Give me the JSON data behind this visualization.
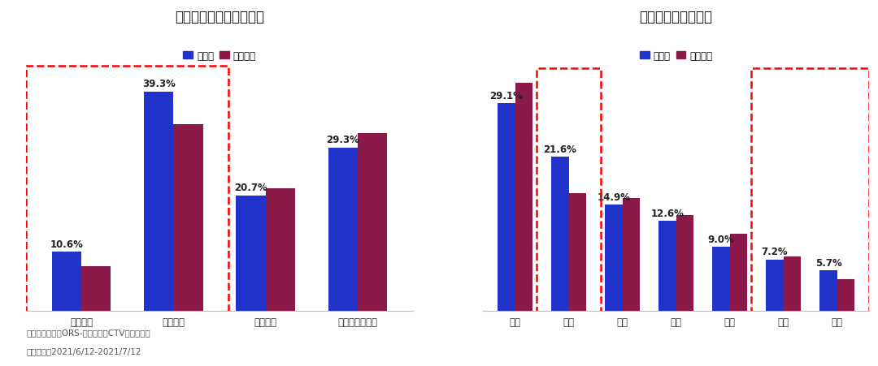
{
  "chart1_title": "分城市级别家庭到达占比",
  "chart2_title": "分大区家庭到达占比",
  "legend_blue": "欧洲杯",
  "legend_red": "直播整体",
  "color_blue": "#2233CC",
  "color_red": "#8B1A4A",
  "chart1_categories": [
    "一线城市",
    "二线城市",
    "三线城市",
    "四线城市及以下"
  ],
  "chart1_blue": [
    10.6,
    39.3,
    20.7,
    29.3
  ],
  "chart1_red": [
    8.0,
    33.5,
    22.0,
    31.8
  ],
  "chart2_categories": [
    "华东",
    "华南",
    "华中",
    "西南",
    "华北",
    "西北",
    "东北"
  ],
  "chart2_blue": [
    29.1,
    21.6,
    14.9,
    12.6,
    9.0,
    7.2,
    5.7
  ],
  "chart2_red": [
    32.0,
    16.5,
    15.8,
    13.5,
    10.8,
    7.6,
    4.5
  ],
  "footnote_line1": "数据来源：匀正ORS-联网电视（CTV）收视系统",
  "footnote_line2": "时间周期：2021/6/12-2021/7/12",
  "background_color": "#FFFFFF",
  "bar_width": 0.32,
  "ylim1": [
    0,
    46
  ],
  "ylim2": [
    0,
    36
  ]
}
